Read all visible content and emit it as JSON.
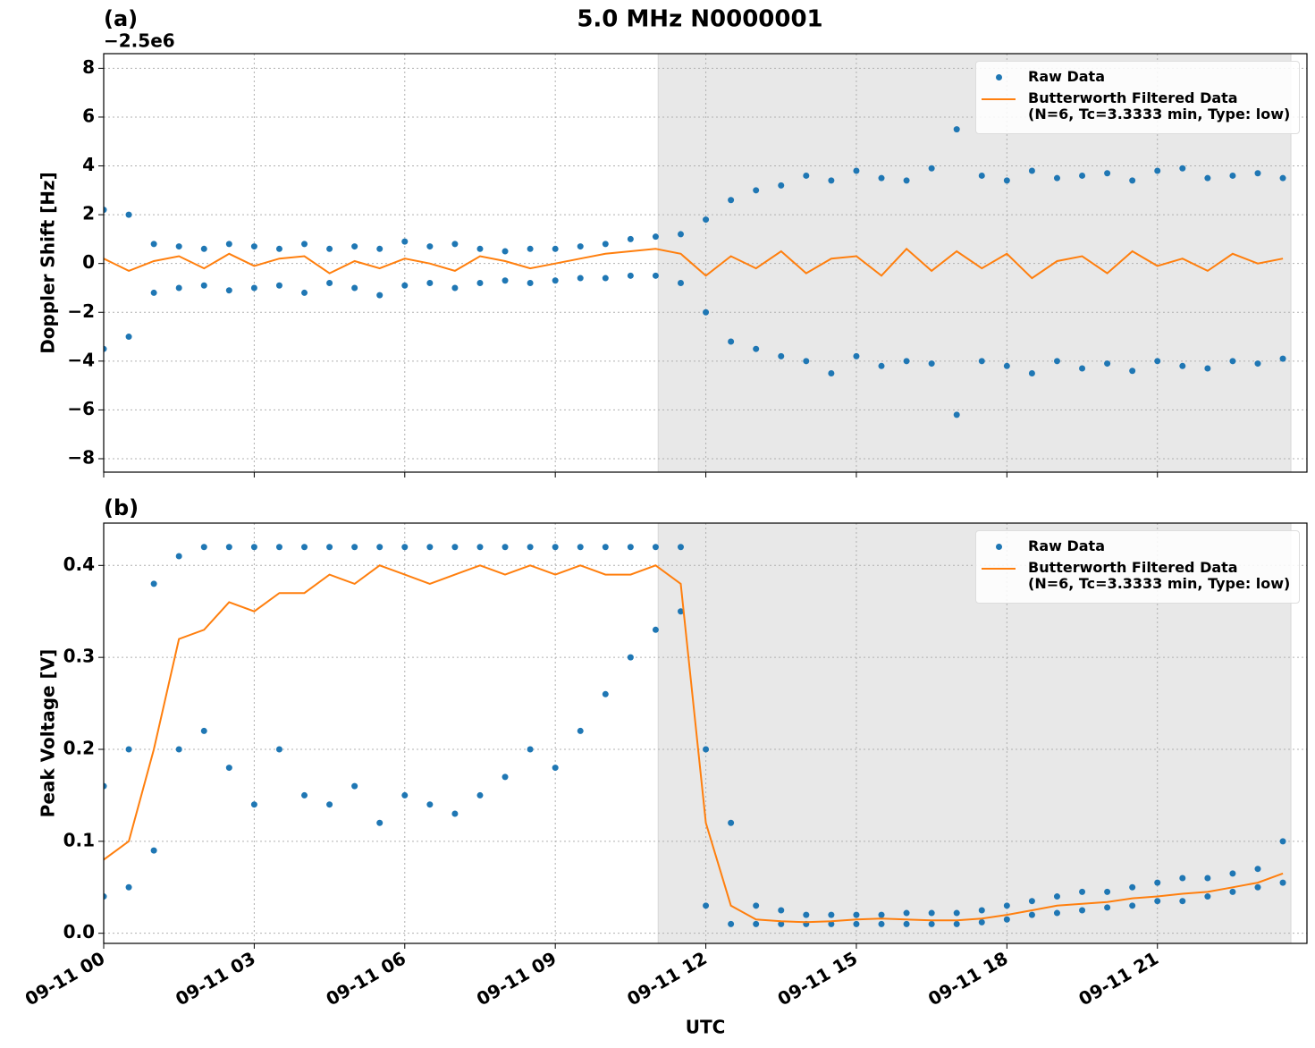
{
  "title": "5.0 MHz N0000001",
  "chart_data": [
    {
      "type": "line",
      "panel_label": "(a)",
      "y_offset_label": "−2.5e6",
      "ylabel": "Doppler Shift [Hz]",
      "xlim": [
        0,
        23.98
      ],
      "ylim": [
        -8.55,
        8.6
      ],
      "xticks": [
        {
          "value": 0,
          "label": "09-11 00"
        },
        {
          "value": 3,
          "label": "09-11 03"
        },
        {
          "value": 6,
          "label": "09-11 06"
        },
        {
          "value": 9,
          "label": "09-11 09"
        },
        {
          "value": 12,
          "label": "09-11 12"
        },
        {
          "value": 15,
          "label": "09-11 15"
        },
        {
          "value": 18,
          "label": "09-11 18"
        },
        {
          "value": 21,
          "label": "09-11 21"
        }
      ],
      "show_xtick_labels": false,
      "yticks": [
        {
          "value": -8,
          "label": "−8"
        },
        {
          "value": -6,
          "label": "−6"
        },
        {
          "value": -4,
          "label": "−4"
        },
        {
          "value": -2,
          "label": "−2"
        },
        0,
        2,
        4,
        6,
        8
      ],
      "grid": true,
      "legend": "upper right",
      "shade": [
        11.05,
        23.66
      ],
      "series": [
        {
          "name": "Raw Data",
          "mode": "markers",
          "color": "#1f77b4",
          "x": [
            0,
            0.5,
            1,
            1.5,
            2,
            2.5,
            3,
            3.5,
            4,
            4.5,
            5,
            5.5,
            6,
            6.5,
            7,
            7.5,
            8,
            8.5,
            9,
            9.5,
            10,
            10.5,
            11,
            11.5,
            12,
            12.5,
            13,
            13.5,
            14,
            14.5,
            15,
            15.5,
            16,
            16.5,
            17,
            17.5,
            18,
            18.5,
            19,
            19.5,
            20,
            20.5,
            21,
            21.5,
            22,
            22.5,
            23,
            23.5,
            0,
            0.5,
            1,
            1.5,
            2,
            2.5,
            3,
            3.5,
            4,
            4.5,
            5,
            5.5,
            6,
            6.5,
            7,
            7.5,
            8,
            8.5,
            9,
            9.5,
            10,
            10.5,
            11,
            11.5,
            12,
            12.5,
            13,
            13.5,
            14,
            14.5,
            15,
            15.5,
            16,
            16.5,
            17,
            17.5,
            18,
            18.5,
            19,
            19.5,
            20,
            20.5,
            21,
            21.5,
            22,
            22.5,
            23,
            23.5
          ],
          "values": [
            2.2,
            2.0,
            0.8,
            0.7,
            0.6,
            0.8,
            0.7,
            0.6,
            0.8,
            0.6,
            0.7,
            0.6,
            0.9,
            0.7,
            0.8,
            0.6,
            0.5,
            0.6,
            0.6,
            0.7,
            0.8,
            1.0,
            1.1,
            1.2,
            1.8,
            2.6,
            3.0,
            3.2,
            3.6,
            3.4,
            3.8,
            3.5,
            3.4,
            3.9,
            5.5,
            3.6,
            3.4,
            3.8,
            3.5,
            3.6,
            3.7,
            3.4,
            3.8,
            3.9,
            3.5,
            3.6,
            3.7,
            3.5,
            -3.5,
            -3.0,
            -1.2,
            -1.0,
            -0.9,
            -1.1,
            -1.0,
            -0.9,
            -1.2,
            -0.8,
            -1.0,
            -1.3,
            -0.9,
            -0.8,
            -1.0,
            -0.8,
            -0.7,
            -0.8,
            -0.7,
            -0.6,
            -0.6,
            -0.5,
            -0.5,
            -0.8,
            -2.0,
            -3.2,
            -3.5,
            -3.8,
            -4.0,
            -4.5,
            -3.8,
            -4.2,
            -4.0,
            -4.1,
            -6.2,
            -4.0,
            -4.2,
            -4.5,
            -4.0,
            -4.3,
            -4.1,
            -4.4,
            -4.0,
            -4.2,
            -4.3,
            -4.0,
            -4.1,
            -3.9
          ]
        },
        {
          "name": "Butterworth Filtered Data\n(N=6, Tc=3.3333 min, Type: low)",
          "mode": "line",
          "color": "#ff7f0e",
          "x": [
            0,
            0.5,
            1,
            1.5,
            2,
            2.5,
            3,
            3.5,
            4,
            4.5,
            5,
            5.5,
            6,
            6.5,
            7,
            7.5,
            8,
            8.5,
            9,
            9.5,
            10,
            10.5,
            11,
            11.5,
            12,
            12.5,
            13,
            13.5,
            14,
            14.5,
            15,
            15.5,
            16,
            16.5,
            17,
            17.5,
            18,
            18.5,
            19,
            19.5,
            20,
            20.5,
            21,
            21.5,
            22,
            22.5,
            23,
            23.5
          ],
          "values": [
            0.2,
            -0.3,
            0.1,
            0.3,
            -0.2,
            0.4,
            -0.1,
            0.2,
            0.3,
            -0.4,
            0.1,
            -0.2,
            0.2,
            0.0,
            -0.3,
            0.3,
            0.1,
            -0.2,
            0.0,
            0.2,
            0.4,
            0.5,
            0.6,
            0.4,
            -0.5,
            0.3,
            -0.2,
            0.5,
            -0.4,
            0.2,
            0.3,
            -0.5,
            0.6,
            -0.3,
            0.5,
            -0.2,
            0.4,
            -0.6,
            0.1,
            0.3,
            -0.4,
            0.5,
            -0.1,
            0.2,
            -0.3,
            0.4,
            0.0,
            0.2
          ]
        }
      ]
    },
    {
      "type": "line",
      "panel_label": "(b)",
      "ylabel": "Peak Voltage [V]",
      "xlabel": "UTC",
      "xlim": [
        0,
        23.98
      ],
      "ylim": [
        -0.011,
        0.446
      ],
      "xticks": [
        {
          "value": 0,
          "label": "09-11 00"
        },
        {
          "value": 3,
          "label": "09-11 03"
        },
        {
          "value": 6,
          "label": "09-11 06"
        },
        {
          "value": 9,
          "label": "09-11 09"
        },
        {
          "value": 12,
          "label": "09-11 12"
        },
        {
          "value": 15,
          "label": "09-11 15"
        },
        {
          "value": 18,
          "label": "09-11 18"
        },
        {
          "value": 21,
          "label": "09-11 21"
        }
      ],
      "show_xtick_labels": true,
      "yticks": [
        {
          "value": 0,
          "label": "0.0"
        },
        0.1,
        0.2,
        0.3,
        0.4
      ],
      "grid": true,
      "legend": "upper right",
      "shade": [
        11.05,
        23.66
      ],
      "series": [
        {
          "name": "Raw Data",
          "mode": "markers",
          "color": "#1f77b4",
          "x": [
            0,
            0.5,
            1,
            1.5,
            2,
            2.5,
            3,
            3.5,
            4,
            4.5,
            5,
            5.5,
            6,
            6.5,
            7,
            7.5,
            8,
            8.5,
            9,
            9.5,
            10,
            10.5,
            11,
            11.5,
            12,
            12.5,
            13,
            13.5,
            14,
            14.5,
            15,
            15.5,
            16,
            16.5,
            17,
            17.5,
            18,
            18.5,
            19,
            19.5,
            20,
            20.5,
            21,
            21.5,
            22,
            22.5,
            23,
            23.5,
            0,
            0.5,
            1,
            1.5,
            2,
            2.5,
            3,
            3.5,
            4,
            4.5,
            5,
            5.5,
            6,
            6.5,
            7,
            7.5,
            8,
            8.5,
            9,
            9.5,
            10,
            10.5,
            11,
            11.5,
            12,
            12.5,
            13,
            13.5,
            14,
            14.5,
            15,
            15.5,
            16,
            16.5,
            17,
            17.5,
            18,
            18.5,
            19,
            19.5,
            20,
            20.5,
            21,
            21.5,
            22,
            22.5,
            23,
            23.5
          ],
          "values": [
            0.16,
            0.2,
            0.38,
            0.41,
            0.42,
            0.42,
            0.42,
            0.42,
            0.42,
            0.42,
            0.42,
            0.42,
            0.42,
            0.42,
            0.42,
            0.42,
            0.42,
            0.42,
            0.42,
            0.42,
            0.42,
            0.42,
            0.42,
            0.42,
            0.2,
            0.12,
            0.03,
            0.025,
            0.02,
            0.02,
            0.02,
            0.02,
            0.022,
            0.022,
            0.022,
            0.025,
            0.03,
            0.035,
            0.04,
            0.045,
            0.045,
            0.05,
            0.055,
            0.06,
            0.06,
            0.065,
            0.07,
            0.1,
            0.04,
            0.05,
            0.09,
            0.2,
            0.22,
            0.18,
            0.14,
            0.2,
            0.15,
            0.14,
            0.16,
            0.12,
            0.15,
            0.14,
            0.13,
            0.15,
            0.17,
            0.2,
            0.18,
            0.22,
            0.26,
            0.3,
            0.33,
            0.35,
            0.03,
            0.01,
            0.01,
            0.01,
            0.01,
            0.01,
            0.01,
            0.01,
            0.01,
            0.01,
            0.01,
            0.012,
            0.015,
            0.02,
            0.022,
            0.025,
            0.028,
            0.03,
            0.035,
            0.035,
            0.04,
            0.045,
            0.05,
            0.055
          ]
        },
        {
          "name": "Butterworth Filtered Data\n(N=6, Tc=3.3333 min, Type: low)",
          "mode": "line",
          "color": "#ff7f0e",
          "x": [
            0,
            0.5,
            1,
            1.5,
            2,
            2.5,
            3,
            3.5,
            4,
            4.5,
            5,
            5.5,
            6,
            6.5,
            7,
            7.5,
            8,
            8.5,
            9,
            9.5,
            10,
            10.5,
            11,
            11.5,
            12,
            12.5,
            13,
            13.5,
            14,
            14.5,
            15,
            15.5,
            16,
            16.5,
            17,
            17.5,
            18,
            18.5,
            19,
            19.5,
            20,
            20.5,
            21,
            21.5,
            22,
            22.5,
            23,
            23.5
          ],
          "values": [
            0.08,
            0.1,
            0.2,
            0.32,
            0.33,
            0.36,
            0.35,
            0.37,
            0.37,
            0.39,
            0.38,
            0.4,
            0.39,
            0.38,
            0.39,
            0.4,
            0.39,
            0.4,
            0.39,
            0.4,
            0.39,
            0.39,
            0.4,
            0.38,
            0.12,
            0.03,
            0.015,
            0.013,
            0.012,
            0.013,
            0.015,
            0.016,
            0.015,
            0.014,
            0.014,
            0.016,
            0.02,
            0.025,
            0.03,
            0.032,
            0.034,
            0.038,
            0.04,
            0.043,
            0.045,
            0.05,
            0.055,
            0.065
          ]
        }
      ]
    }
  ]
}
